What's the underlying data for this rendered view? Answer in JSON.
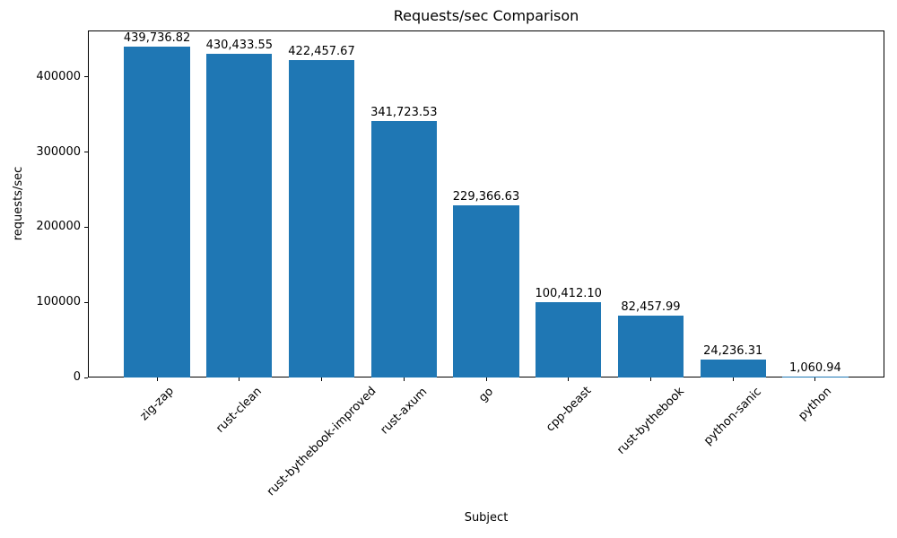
{
  "chart_data": {
    "type": "bar",
    "title": "Requests/sec Comparison",
    "xlabel": "Subject",
    "ylabel": "requests/sec",
    "categories": [
      "zig-zap",
      "rust-clean",
      "rust-bythebook-improved",
      "rust-axum",
      "go",
      "cpp-beast",
      "rust-bythebook",
      "python-sanic",
      "python"
    ],
    "values": [
      439736.82,
      430433.55,
      422457.67,
      341723.53,
      229366.63,
      100412.1,
      82457.99,
      24236.31,
      1060.94
    ],
    "value_labels": [
      "439,736.82",
      "430,433.55",
      "422,457.67",
      "341,723.53",
      "229,366.63",
      "100,412.10",
      "82,457.99",
      "24,236.31",
      "1,060.94"
    ],
    "ytick_values": [
      0,
      100000,
      200000,
      300000,
      400000
    ],
    "ytick_labels": [
      "0",
      "100000",
      "200000",
      "300000",
      "400000"
    ],
    "ylim": [
      0,
      461724
    ],
    "bar_color": "#1f77b4",
    "text_color": "#000000",
    "grid": false,
    "legend": null
  }
}
